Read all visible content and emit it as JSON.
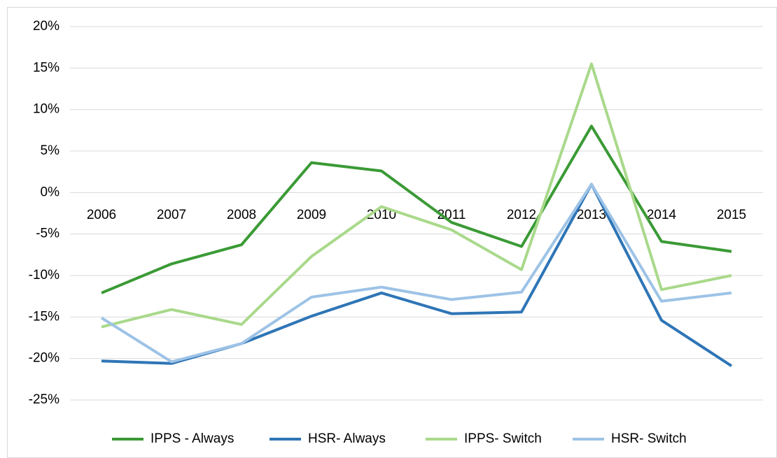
{
  "chart_data": {
    "type": "line",
    "categories": [
      "2006",
      "2007",
      "2008",
      "2009",
      "2010",
      "2011",
      "2012",
      "2013",
      "2014",
      "2015"
    ],
    "series": [
      {
        "name": "IPPS - Always",
        "color": "#3a9a35",
        "values": [
          -12.1,
          -8.6,
          -6.3,
          3.6,
          2.6,
          -3.6,
          -6.5,
          8.0,
          -5.9,
          -7.1
        ]
      },
      {
        "name": "HSR- Always",
        "color": "#2e75b6",
        "values": [
          -20.3,
          -20.6,
          -18.2,
          -14.9,
          -12.1,
          -14.6,
          -14.4,
          1.0,
          -15.4,
          -20.9
        ]
      },
      {
        "name": "IPPS- Switch",
        "color": "#a9d98b",
        "values": [
          -16.2,
          -14.1,
          -15.9,
          -7.7,
          -1.7,
          -4.5,
          -9.3,
          15.5,
          -11.7,
          -10.0
        ]
      },
      {
        "name": "HSR- Switch",
        "color": "#9dc3e6",
        "values": [
          -15.1,
          -20.4,
          -18.2,
          -12.6,
          -11.4,
          -12.9,
          -12.0,
          1.0,
          -13.1,
          -12.1
        ]
      }
    ],
    "ylim": [
      -25,
      20
    ],
    "yticks": [
      {
        "value": -25,
        "label": "-25%"
      },
      {
        "value": -20,
        "label": "-20%"
      },
      {
        "value": -15,
        "label": "-15%"
      },
      {
        "value": -10,
        "label": "-10%"
      },
      {
        "value": -5,
        "label": "-5%"
      },
      {
        "value": 0,
        "label": "0%"
      },
      {
        "value": 5,
        "label": "5%"
      },
      {
        "value": 10,
        "label": "10%"
      },
      {
        "value": 15,
        "label": "15%"
      },
      {
        "value": 20,
        "label": "20%"
      }
    ],
    "grid": true,
    "legend": "bottom"
  }
}
